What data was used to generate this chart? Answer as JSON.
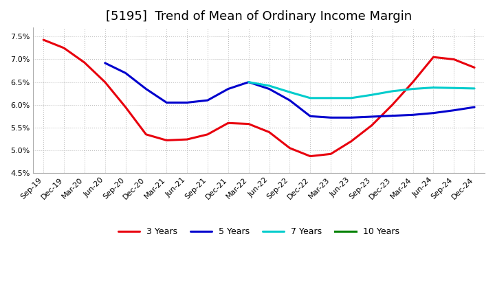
{
  "title": "[5195]  Trend of Mean of Ordinary Income Margin",
  "x_labels": [
    "Sep-19",
    "Dec-19",
    "Mar-20",
    "Jun-20",
    "Sep-20",
    "Dec-20",
    "Mar-21",
    "Jun-21",
    "Sep-21",
    "Dec-21",
    "Mar-22",
    "Jun-22",
    "Sep-22",
    "Dec-22",
    "Mar-23",
    "Jun-23",
    "Sep-23",
    "Dec-23",
    "Mar-24",
    "Jun-24",
    "Sep-24",
    "Dec-24"
  ],
  "series_3y": [
    7.43,
    7.25,
    6.93,
    6.5,
    5.95,
    5.35,
    5.22,
    5.24,
    5.35,
    5.6,
    5.58,
    5.4,
    5.05,
    4.87,
    4.92,
    5.2,
    5.55,
    6.0,
    6.5,
    7.05,
    7.0,
    6.82
  ],
  "series_5y": [
    null,
    null,
    null,
    6.92,
    6.7,
    6.35,
    6.05,
    6.05,
    6.1,
    6.35,
    6.5,
    6.35,
    6.1,
    5.75,
    5.72,
    5.72,
    5.74,
    5.76,
    5.78,
    5.82,
    5.88,
    5.95
  ],
  "series_7y": [
    null,
    null,
    null,
    null,
    null,
    null,
    null,
    null,
    null,
    null,
    6.5,
    6.42,
    6.28,
    6.15,
    6.15,
    6.15,
    6.22,
    6.3,
    6.35,
    6.38,
    6.37,
    6.36
  ],
  "series_10y": [
    null,
    null,
    null,
    null,
    null,
    null,
    null,
    null,
    null,
    null,
    null,
    null,
    null,
    null,
    null,
    null,
    null,
    null,
    null,
    null,
    null,
    null
  ],
  "colors": {
    "3y": "#e8000d",
    "5y": "#0000cd",
    "7y": "#00cccc",
    "10y": "#008000"
  },
  "ylim": [
    4.5,
    7.7
  ],
  "yticks": [
    4.5,
    5.0,
    5.5,
    6.0,
    6.5,
    7.0,
    7.5
  ],
  "background_color": "#ffffff",
  "grid_color": "#c0c0c0",
  "title_fontsize": 13,
  "legend_labels": [
    "3 Years",
    "5 Years",
    "7 Years",
    "10 Years"
  ]
}
